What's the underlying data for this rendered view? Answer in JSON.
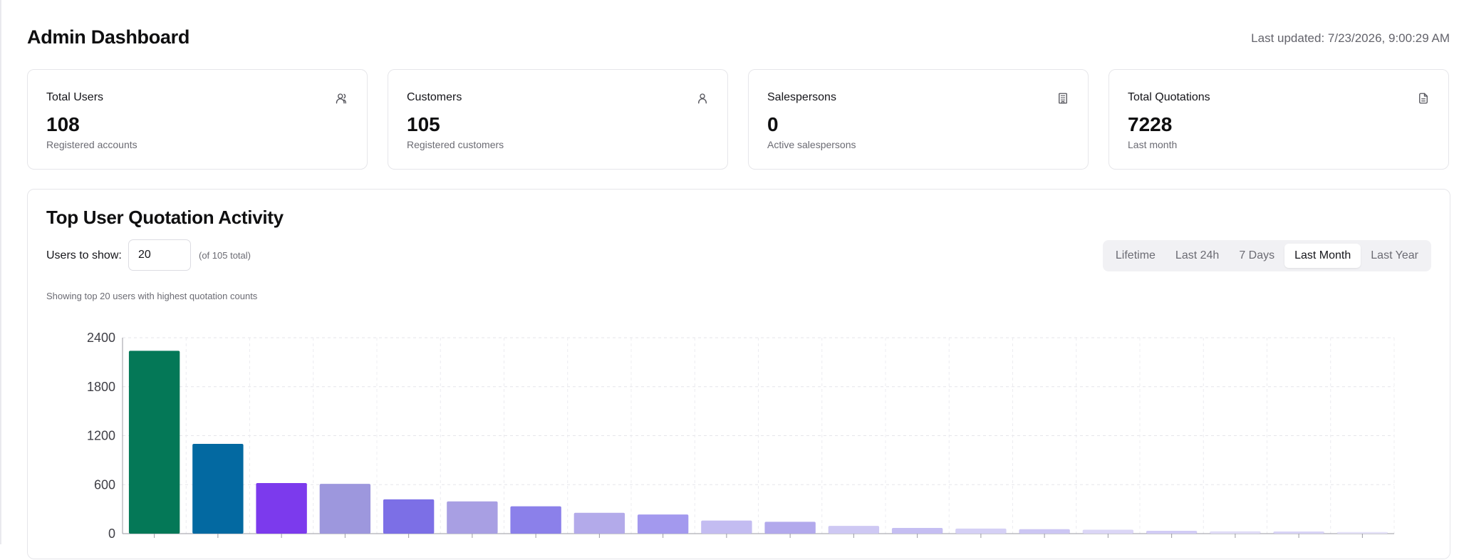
{
  "header": {
    "title": "Admin Dashboard",
    "last_updated": "Last updated: 7/23/2026, 9:00:29 AM"
  },
  "cards": [
    {
      "title": "Total Users",
      "value": "108",
      "subtitle": "Registered accounts",
      "icon": "users-icon"
    },
    {
      "title": "Customers",
      "value": "105",
      "subtitle": "Registered customers",
      "icon": "user-icon"
    },
    {
      "title": "Salespersons",
      "value": "0",
      "subtitle": "Active salespersons",
      "icon": "building-icon"
    },
    {
      "title": "Total Quotations",
      "value": "7228",
      "subtitle": "Last month",
      "icon": "document-icon"
    }
  ],
  "activity": {
    "title": "Top User Quotation Activity",
    "users_label": "Users to show:",
    "users_value": "20",
    "users_total": "(of 105 total)",
    "showing_text": "Showing top 20 users with highest quotation counts",
    "tabs": [
      "Lifetime",
      "Last 24h",
      "7 Days",
      "Last Month",
      "Last Year"
    ],
    "active_tab": "Last Month"
  },
  "chart_data": {
    "type": "bar",
    "ylim": [
      0,
      2400
    ],
    "yticks": [
      "2400",
      "1800",
      "1200",
      "600",
      "0"
    ],
    "grid": true,
    "values": [
      2240,
      1100,
      620,
      610,
      420,
      395,
      335,
      255,
      235,
      160,
      145,
      95,
      70,
      62,
      55,
      48,
      35,
      28,
      26,
      20
    ],
    "colors": [
      "#047857",
      "#0369a1",
      "#7c3aed",
      "#9d97dd",
      "#7c6fe6",
      "#a89fe3",
      "#8b80ea",
      "#b3aaea",
      "#a399ee",
      "#c3bcf1",
      "#b2a9ec",
      "#cec8f3",
      "#c5bef2",
      "#d5d0f5",
      "#ccc6f3",
      "#dbd6f6",
      "#d2ccf5",
      "#e0dcf7",
      "#d8d3f6",
      "#e4e1f8"
    ]
  }
}
